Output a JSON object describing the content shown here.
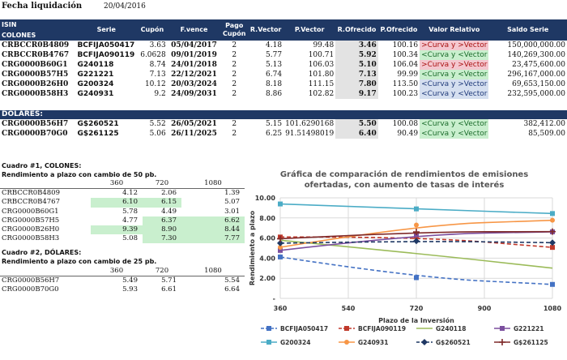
{
  "header": {
    "fecha_label": "Fecha liquidación",
    "fecha_value": "20/04/2016"
  },
  "columns": {
    "isin": "ISIN",
    "serie": "Serie",
    "cupon": "Cupón",
    "fvence": "F.vence",
    "pago_cupon_1": "Pago",
    "pago_cupon_2": "Cupón",
    "rvector": "R.Vector",
    "pvector": "P.Vector",
    "rofrecido": "R.Ofrecido",
    "pofrecido": "P.Ofrecido",
    "valor_relativo": "Valor Relativo",
    "saldo_serie": "Saldo Serie"
  },
  "colones_label": "COLONES",
  "colones_rows": [
    {
      "isin": "CRBCCR0B4809",
      "serie": "BCFIJA050417",
      "cupon": "3.63",
      "fvence": "05/04/2017",
      "pago": "2",
      "rvector": "4.18",
      "pvector": "99.48",
      "rofrecido": "3.46",
      "pofrecido": "100.16",
      "vr": ">Curva y >Vector",
      "vr_style": "vr-red",
      "saldo": "150,000,000.00"
    },
    {
      "isin": "CRBCCR0B4767",
      "serie": "BCFIJA090119",
      "cupon": "6.0628",
      "fvence": "09/01/2019",
      "pago": "2",
      "rvector": "5.77",
      "pvector": "100.71",
      "rofrecido": "5.92",
      "pofrecido": "100.34",
      "vr": "<Curva y <Vector",
      "vr_style": "vr-green",
      "saldo": "140,269,300.00"
    },
    {
      "isin": "CRG0000B60G1",
      "serie": "G240118",
      "cupon": "8.74",
      "fvence": "24/01/2018",
      "pago": "2",
      "rvector": "5.13",
      "pvector": "106.03",
      "rofrecido": "5.10",
      "pofrecido": "106.04",
      "vr": ">Curva y >Vector",
      "vr_style": "vr-red",
      "saldo": "23,475,600.00"
    },
    {
      "isin": "CRG0000B57H5",
      "serie": "G221221",
      "cupon": "7.13",
      "fvence": "22/12/2021",
      "pago": "2",
      "rvector": "6.74",
      "pvector": "101.80",
      "rofrecido": "7.13",
      "pofrecido": "99.99",
      "vr": "<Curva y <Vector",
      "vr_style": "vr-green",
      "saldo": "296,167,000.00"
    },
    {
      "isin": "CRG0000B26H0",
      "serie": "G200324",
      "cupon": "10.12",
      "fvence": "20/03/2024",
      "pago": "2",
      "rvector": "8.18",
      "pvector": "111.15",
      "rofrecido": "7.80",
      "pofrecido": "113.50",
      "vr": "<Curva y >Vector",
      "vr_style": "vr-blue",
      "saldo": "69,653,150.00"
    },
    {
      "isin": "CRG0000B58H3",
      "serie": "G240931",
      "cupon": "9.2",
      "fvence": "24/09/2031",
      "pago": "2",
      "rvector": "8.86",
      "pvector": "102.82",
      "rofrecido": "9.17",
      "pofrecido": "100.23",
      "vr": "<Curva y <Vector",
      "vr_style": "vr-blue",
      "saldo": "232,595,000.00"
    }
  ],
  "dolares_label": "DÓLARES:",
  "dolares_rows": [
    {
      "isin": "CRG0000B56H7",
      "serie": "G$260521",
      "cupon": "5.52",
      "fvence": "26/05/2021",
      "pago": "2",
      "rvector": "5.15",
      "pvector": "101.6290168",
      "rofrecido": "5.50",
      "pofrecido": "100.08",
      "vr": "<Curva y <Vector",
      "vr_style": "vr-green",
      "saldo": "382,412.00"
    },
    {
      "isin": "CRG0000B70G0",
      "serie": "G$261125",
      "cupon": "5.06",
      "fvence": "26/11/2025",
      "pago": "2",
      "rvector": "6.25",
      "pvector": "91.51498019",
      "rofrecido": "6.40",
      "pofrecido": "90.49",
      "vr": "<Curva y <Vector",
      "vr_style": "vr-green",
      "saldo": "85,509.00"
    }
  ],
  "cuadro1": {
    "title": "Cuadro #1, COLONES:",
    "subtitle": "Rendimiento a plazo con cambio de 50 pb.",
    "headers": [
      "360",
      "720",
      "1080"
    ],
    "rows": [
      {
        "name": "CRBCCR0B4809",
        "v": [
          "4.12",
          "2.06",
          "1.39"
        ],
        "g": [
          false,
          false,
          false
        ]
      },
      {
        "name": "CRBCCR0B4767",
        "v": [
          "6.10",
          "6.15",
          "5.07"
        ],
        "g": [
          true,
          true,
          false
        ]
      },
      {
        "name": "CRG0000B60G1",
        "v": [
          "5.78",
          "4.49",
          "3.01"
        ],
        "g": [
          false,
          false,
          false
        ]
      },
      {
        "name": "CRG0000B57H5",
        "v": [
          "4.77",
          "6.37",
          "6.62"
        ],
        "g": [
          false,
          true,
          true
        ]
      },
      {
        "name": "CRG0000B26H0",
        "v": [
          "9.39",
          "8.90",
          "8.44"
        ],
        "g": [
          true,
          true,
          true
        ]
      },
      {
        "name": "CRG0000B58H3",
        "v": [
          "5.08",
          "7.30",
          "7.77"
        ],
        "g": [
          false,
          true,
          true
        ]
      }
    ]
  },
  "cuadro2": {
    "title": "Cuadro #2, DÓLARES:",
    "subtitle": "Rendimiento a plazo con cambio de 25 pb.",
    "headers": [
      "360",
      "720",
      "1080"
    ],
    "rows": [
      {
        "name": "CRG0000B56H7",
        "v": [
          "5.49",
          "5.71",
          "5.54"
        ]
      },
      {
        "name": "CRG0000B70G0",
        "v": [
          "5.93",
          "6.61",
          "6.64"
        ]
      }
    ]
  },
  "chart_data": {
    "type": "line",
    "title_line1": "Gráfica de comparación de rendimientos de emisiones",
    "title_line2": "ofertadas, con aumento de tasas de interés",
    "xlabel": "Plazo de la Inversión",
    "ylabel": "Rendimiento a plazo",
    "x": [
      360,
      720,
      1080
    ],
    "xticks": [
      "360",
      "540",
      "720",
      "900",
      "1080"
    ],
    "xlim": [
      360,
      1080
    ],
    "yticks": [
      "-",
      "2.00",
      "4.00",
      "6.00",
      "8.00",
      "10.00"
    ],
    "ylim": [
      0,
      10
    ],
    "grid": true,
    "legend_position": "bottom",
    "series": [
      {
        "name": "BCFIJA050417",
        "values": [
          4.12,
          2.06,
          1.39
        ],
        "color": "#4472c4",
        "dash": true,
        "marker": "square"
      },
      {
        "name": "BCFIJA090119",
        "values": [
          6.1,
          6.15,
          5.07
        ],
        "color": "#c0392b",
        "dash": true,
        "marker": "square"
      },
      {
        "name": "G240118",
        "values": [
          5.78,
          4.49,
          3.01
        ],
        "color": "#9bbb59",
        "dash": false,
        "marker": "none"
      },
      {
        "name": "G221221",
        "values": [
          4.77,
          6.37,
          6.62
        ],
        "color": "#7b4f9e",
        "dash": false,
        "marker": "square"
      },
      {
        "name": "G200324",
        "values": [
          9.39,
          8.9,
          8.44
        ],
        "color": "#4bacc6",
        "dash": false,
        "marker": "square"
      },
      {
        "name": "G240931",
        "values": [
          5.08,
          7.3,
          7.77
        ],
        "color": "#f79646",
        "dash": false,
        "marker": "circle"
      },
      {
        "name": "G$260521",
        "values": [
          5.49,
          5.71,
          5.54
        ],
        "color": "#1f3864",
        "dash": true,
        "marker": "diamond"
      },
      {
        "name": "G$261125",
        "values": [
          5.93,
          6.61,
          6.64
        ],
        "color": "#7f2a2a",
        "dash": false,
        "marker": "plus"
      }
    ]
  }
}
